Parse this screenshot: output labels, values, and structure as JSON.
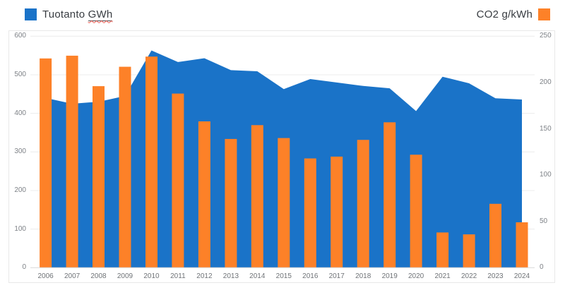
{
  "legend": {
    "production": {
      "prefix": "Tuotanto ",
      "underlined": "GWh"
    },
    "co2": {
      "label": "CO2 g/kWh"
    }
  },
  "colors": {
    "production_blue": "#1A73C8",
    "co2_orange": "#FD8128",
    "gridline": "#ECECEC",
    "axis_line": "#D9D9D9",
    "tick_text": "#7E8287",
    "year_text": "#6F7377",
    "squiggle_red": "#EE564C"
  },
  "chart_data": {
    "type": "combo",
    "categories": [
      "2006",
      "2007",
      "2008",
      "2009",
      "2010",
      "2011",
      "2012",
      "2013",
      "2014",
      "2015",
      "2016",
      "2017",
      "2018",
      "2019",
      "2020",
      "2021",
      "2022",
      "2023",
      "2024"
    ],
    "series": [
      {
        "name": "Tuotanto GWh",
        "type": "area",
        "axis": "left",
        "color": "#1A73C8",
        "values": [
          440,
          425,
          430,
          445,
          563,
          533,
          543,
          512,
          509,
          463,
          489,
          480,
          471,
          465,
          406,
          495,
          478,
          439,
          436
        ]
      },
      {
        "name": "CO2 g/kWh",
        "type": "bar",
        "axis": "right",
        "color": "#FD8128",
        "values": [
          226,
          229,
          196,
          217,
          228,
          188,
          158,
          139,
          154,
          140,
          118,
          120,
          138,
          157,
          122,
          38,
          36,
          69,
          49
        ]
      }
    ],
    "left_axis": {
      "min": 0,
      "max": 600,
      "ticks": [
        600,
        500,
        400,
        300,
        200,
        100,
        0
      ]
    },
    "right_axis": {
      "min": 0,
      "max": 250,
      "ticks": [
        250,
        200,
        150,
        100,
        50,
        0
      ]
    },
    "grid": true,
    "legend_position": "top"
  }
}
